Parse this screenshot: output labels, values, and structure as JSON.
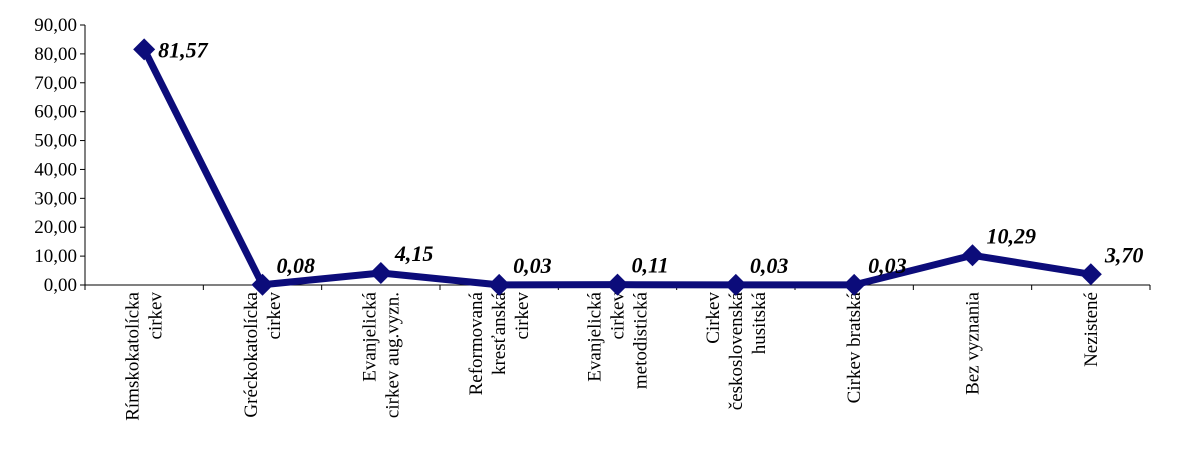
{
  "chart_data": {
    "type": "line",
    "title": "",
    "xlabel": "",
    "ylabel": "",
    "ylim": [
      0,
      90
    ],
    "y_ticks": [
      "0,00",
      "10,00",
      "20,00",
      "30,00",
      "40,00",
      "50,00",
      "60,00",
      "70,00",
      "80,00",
      "90,00"
    ],
    "categories": [
      [
        "Rímskokatolícka",
        "cirkev"
      ],
      [
        "Gréckokatolícka",
        "cirkev"
      ],
      [
        "Evanjelická",
        "cirkev aug.vyzn."
      ],
      [
        "Reformovaná",
        "kresťanská",
        "cirkev"
      ],
      [
        "Evanjelická",
        "cirkev",
        "metodistická"
      ],
      [
        "Cirkev",
        "československá",
        "husitská"
      ],
      [
        "Cirkev bratská"
      ],
      [
        "Bez vyznania"
      ],
      [
        "Nezistené"
      ]
    ],
    "values": [
      81.57,
      0.08,
      4.15,
      0.03,
      0.11,
      0.03,
      0.03,
      10.29,
      3.7
    ],
    "data_labels": [
      "81,57",
      "0,08",
      "4,15",
      "0,03",
      "0,11",
      "0,03",
      "0,03",
      "10,29",
      "3,70"
    ],
    "grid": false,
    "legend": "none",
    "line_color": "#0c0c7a"
  }
}
